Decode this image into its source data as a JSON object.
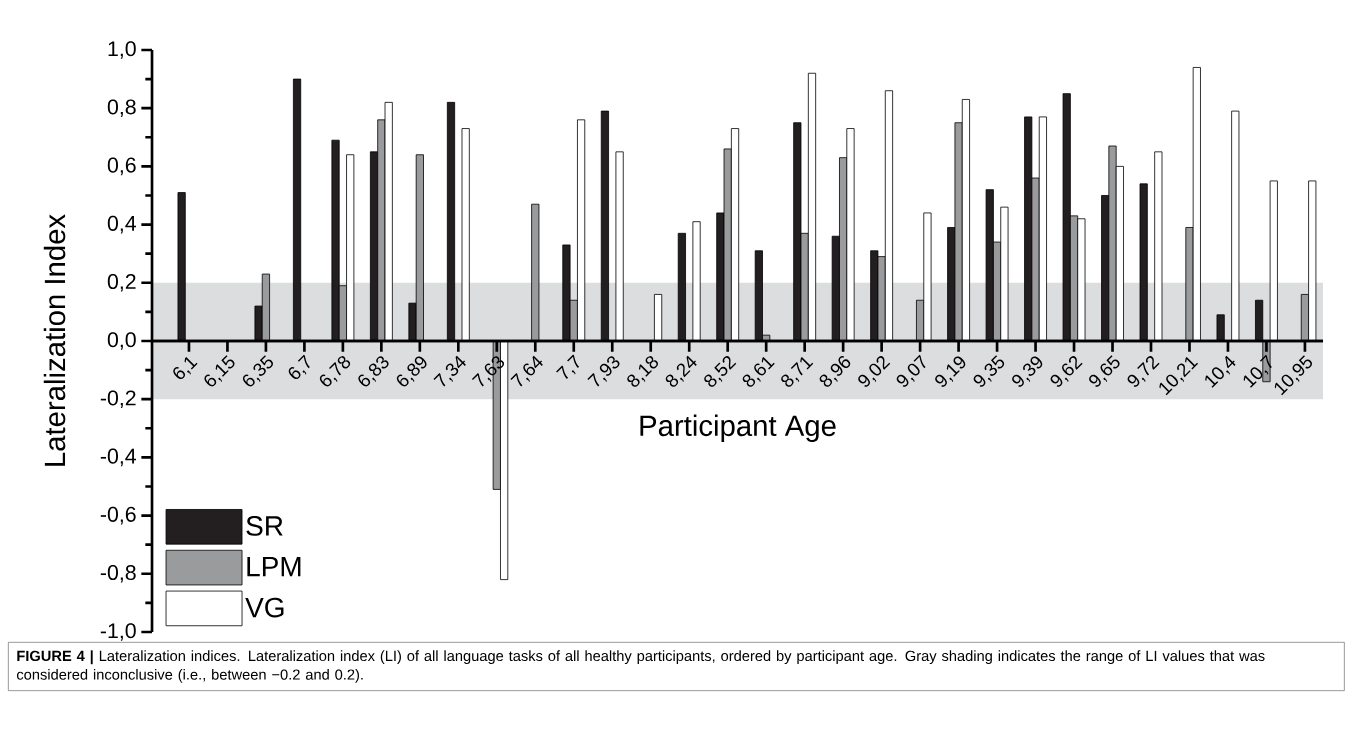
{
  "chart_data": {
    "type": "bar",
    "ylabel": "Lateralization Index",
    "xlabel": "Participant Age",
    "categories": [
      "6,1",
      "6,15",
      "6,35",
      "6,7",
      "6,78",
      "6,83",
      "6,89",
      "7,34",
      "7,63",
      "7,64",
      "7,7",
      "7,93",
      "8,18",
      "8,24",
      "8,52",
      "8,61",
      "8,71",
      "8,96",
      "9,02",
      "9,07",
      "9,19",
      "9,35",
      "9,39",
      "9,62",
      "9,65",
      "9,72",
      "10,21",
      "10,4",
      "10,7",
      "10,95"
    ],
    "series": [
      {
        "name": "SR",
        "color": "#231f20",
        "values": [
          0.51,
          null,
          0.12,
          0.9,
          0.69,
          0.65,
          0.13,
          0.82,
          null,
          null,
          0.33,
          0.79,
          null,
          0.37,
          0.44,
          0.31,
          0.75,
          0.36,
          0.31,
          null,
          0.39,
          0.52,
          0.77,
          0.85,
          0.5,
          0.54,
          null,
          0.09,
          0.14,
          null
        ]
      },
      {
        "name": "LPM",
        "color": "#9a9b9d",
        "values": [
          null,
          null,
          0.23,
          null,
          0.19,
          0.76,
          0.64,
          null,
          -0.51,
          0.47,
          0.14,
          null,
          null,
          null,
          0.66,
          0.02,
          0.37,
          0.63,
          0.29,
          0.14,
          0.75,
          0.34,
          0.56,
          0.43,
          0.67,
          null,
          0.39,
          null,
          -0.14,
          0.16
        ]
      },
      {
        "name": "VG",
        "color": "#ffffff",
        "values": [
          null,
          null,
          null,
          null,
          0.64,
          0.82,
          null,
          0.73,
          -0.82,
          null,
          0.76,
          0.65,
          0.16,
          0.41,
          0.73,
          null,
          0.92,
          0.73,
          0.86,
          0.44,
          0.83,
          0.46,
          0.77,
          0.42,
          0.6,
          0.65,
          0.94,
          0.79,
          0.55,
          0.55
        ]
      }
    ],
    "ylim": [
      -1.0,
      1.0
    ],
    "yticks": [
      {
        "value": -1.0,
        "label": "-1,0"
      },
      {
        "value": -0.9,
        "label": null
      },
      {
        "value": -0.8,
        "label": "-0,8"
      },
      {
        "value": -0.7,
        "label": null
      },
      {
        "value": -0.6,
        "label": "-0,6"
      },
      {
        "value": -0.5,
        "label": null
      },
      {
        "value": -0.4,
        "label": "-0,4"
      },
      {
        "value": -0.3,
        "label": null
      },
      {
        "value": -0.2,
        "label": "-0,2"
      },
      {
        "value": -0.1,
        "label": null
      },
      {
        "value": 0.0,
        "label": "0,0"
      },
      {
        "value": 0.1,
        "label": null
      },
      {
        "value": 0.2,
        "label": "0,2"
      },
      {
        "value": 0.3,
        "label": null
      },
      {
        "value": 0.4,
        "label": "0,4"
      },
      {
        "value": 0.5,
        "label": null
      },
      {
        "value": 0.6,
        "label": "0,6"
      },
      {
        "value": 0.7,
        "label": null
      },
      {
        "value": 0.8,
        "label": "0,8"
      },
      {
        "value": 0.9,
        "label": null
      },
      {
        "value": 1.0,
        "label": "1,0"
      }
    ],
    "bands": [
      {
        "axis": "y",
        "from": -0.2,
        "to": 0.2,
        "color": "#dcdddf"
      }
    ],
    "legend": "bottom left",
    "annotations": [
      "**FIGURE 4 |** Lateralization indices. Lateralization index (LI) of all language tasks of all healthy participants, ordered by participant age. Gray shading indicates the range of LI values that was considered inconclusive (i.e., between −0.2 and 0.2)."
    ]
  }
}
